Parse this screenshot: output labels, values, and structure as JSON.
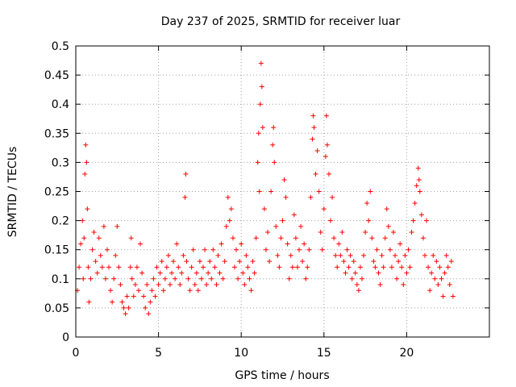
{
  "chart_data": {
    "type": "scatter",
    "title": "Day 237 of 2025, SRMTID for receiver luar",
    "xlabel": "GPS time / hours",
    "ylabel": "SRMTID / TECUs",
    "xlim": [
      0,
      25
    ],
    "ylim": [
      0,
      0.5
    ],
    "x_ticks": [
      0,
      5,
      10,
      15,
      20
    ],
    "x_tick_labels": [
      "0",
      "5",
      "10",
      "15",
      "20"
    ],
    "y_ticks": [
      0,
      0.05,
      0.1,
      0.15,
      0.2,
      0.25,
      0.3,
      0.35,
      0.4,
      0.45,
      0.5
    ],
    "y_tick_labels": [
      "0",
      "0.05",
      "0.1",
      "0.15",
      "0.2",
      "0.25",
      "0.3",
      "0.35",
      "0.4",
      "0.45",
      "0.5"
    ],
    "grid": true,
    "marker": "+",
    "color": "#ff0000",
    "series": [
      {
        "name": "SRMTID",
        "points": [
          [
            0.1,
            0.08
          ],
          [
            0.2,
            0.12
          ],
          [
            0.3,
            0.16
          ],
          [
            0.4,
            0.2
          ],
          [
            0.45,
            0.1
          ],
          [
            0.5,
            0.17
          ],
          [
            0.55,
            0.28
          ],
          [
            0.6,
            0.33
          ],
          [
            0.65,
            0.3
          ],
          [
            0.7,
            0.22
          ],
          [
            0.75,
            0.12
          ],
          [
            0.8,
            0.06
          ],
          [
            0.9,
            0.1
          ],
          [
            1.0,
            0.15
          ],
          [
            1.1,
            0.18
          ],
          [
            1.2,
            0.13
          ],
          [
            1.3,
            0.11
          ],
          [
            1.4,
            0.17
          ],
          [
            1.5,
            0.14
          ],
          [
            1.6,
            0.12
          ],
          [
            1.7,
            0.19
          ],
          [
            1.8,
            0.1
          ],
          [
            1.9,
            0.15
          ],
          [
            2.0,
            0.12
          ],
          [
            2.1,
            0.08
          ],
          [
            2.2,
            0.06
          ],
          [
            2.3,
            0.1
          ],
          [
            2.4,
            0.14
          ],
          [
            2.5,
            0.19
          ],
          [
            2.6,
            0.12
          ],
          [
            2.7,
            0.09
          ],
          [
            2.8,
            0.06
          ],
          [
            2.9,
            0.05
          ],
          [
            3.0,
            0.04
          ],
          [
            3.1,
            0.07
          ],
          [
            3.2,
            0.05
          ],
          [
            3.3,
            0.12
          ],
          [
            3.35,
            0.17
          ],
          [
            3.4,
            0.1
          ],
          [
            3.5,
            0.07
          ],
          [
            3.6,
            0.09
          ],
          [
            3.7,
            0.12
          ],
          [
            3.8,
            0.08
          ],
          [
            3.9,
            0.16
          ],
          [
            4.0,
            0.11
          ],
          [
            4.1,
            0.07
          ],
          [
            4.2,
            0.05
          ],
          [
            4.3,
            0.09
          ],
          [
            4.4,
            0.04
          ],
          [
            4.5,
            0.06
          ],
          [
            4.6,
            0.08
          ],
          [
            4.7,
            0.1
          ],
          [
            4.8,
            0.07
          ],
          [
            4.9,
            0.12
          ],
          [
            5.0,
            0.09
          ],
          [
            5.1,
            0.11
          ],
          [
            5.2,
            0.13
          ],
          [
            5.3,
            0.08
          ],
          [
            5.4,
            0.1
          ],
          [
            5.5,
            0.12
          ],
          [
            5.6,
            0.14
          ],
          [
            5.7,
            0.09
          ],
          [
            5.8,
            0.11
          ],
          [
            5.9,
            0.13
          ],
          [
            6.0,
            0.1
          ],
          [
            6.1,
            0.16
          ],
          [
            6.2,
            0.12
          ],
          [
            6.3,
            0.09
          ],
          [
            6.4,
            0.11
          ],
          [
            6.5,
            0.14
          ],
          [
            6.6,
            0.24
          ],
          [
            6.65,
            0.28
          ],
          [
            6.7,
            0.13
          ],
          [
            6.8,
            0.1
          ],
          [
            6.9,
            0.08
          ],
          [
            7.0,
            0.12
          ],
          [
            7.1,
            0.15
          ],
          [
            7.2,
            0.09
          ],
          [
            7.3,
            0.11
          ],
          [
            7.4,
            0.08
          ],
          [
            7.5,
            0.13
          ],
          [
            7.6,
            0.1
          ],
          [
            7.7,
            0.12
          ],
          [
            7.8,
            0.15
          ],
          [
            7.9,
            0.09
          ],
          [
            8.0,
            0.11
          ],
          [
            8.1,
            0.13
          ],
          [
            8.2,
            0.1
          ],
          [
            8.3,
            0.15
          ],
          [
            8.4,
            0.12
          ],
          [
            8.5,
            0.09
          ],
          [
            8.6,
            0.14
          ],
          [
            8.7,
            0.11
          ],
          [
            8.8,
            0.16
          ],
          [
            8.9,
            0.1
          ],
          [
            9.0,
            0.13
          ],
          [
            9.1,
            0.19
          ],
          [
            9.2,
            0.24
          ],
          [
            9.3,
            0.2
          ],
          [
            9.4,
            0.22
          ],
          [
            9.5,
            0.17
          ],
          [
            9.6,
            0.12
          ],
          [
            9.7,
            0.15
          ],
          [
            9.8,
            0.1
          ],
          [
            9.9,
            0.13
          ],
          [
            10.0,
            0.16
          ],
          [
            10.1,
            0.11
          ],
          [
            10.2,
            0.09
          ],
          [
            10.3,
            0.14
          ],
          [
            10.4,
            0.12
          ],
          [
            10.5,
            0.1
          ],
          [
            10.6,
            0.08
          ],
          [
            10.7,
            0.13
          ],
          [
            10.8,
            0.11
          ],
          [
            10.9,
            0.17
          ],
          [
            11.0,
            0.3
          ],
          [
            11.05,
            0.35
          ],
          [
            11.1,
            0.25
          ],
          [
            11.15,
            0.4
          ],
          [
            11.2,
            0.47
          ],
          [
            11.25,
            0.43
          ],
          [
            11.3,
            0.36
          ],
          [
            11.4,
            0.22
          ],
          [
            11.5,
            0.15
          ],
          [
            11.6,
            0.18
          ],
          [
            11.7,
            0.13
          ],
          [
            11.8,
            0.25
          ],
          [
            11.9,
            0.33
          ],
          [
            11.95,
            0.36
          ],
          [
            12.0,
            0.3
          ],
          [
            12.1,
            0.19
          ],
          [
            12.2,
            0.14
          ],
          [
            12.3,
            0.12
          ],
          [
            12.4,
            0.17
          ],
          [
            12.5,
            0.2
          ],
          [
            12.6,
            0.27
          ],
          [
            12.7,
            0.24
          ],
          [
            12.8,
            0.16
          ],
          [
            12.9,
            0.1
          ],
          [
            13.0,
            0.14
          ],
          [
            13.1,
            0.12
          ],
          [
            13.2,
            0.21
          ],
          [
            13.3,
            0.17
          ],
          [
            13.4,
            0.12
          ],
          [
            13.5,
            0.15
          ],
          [
            13.6,
            0.19
          ],
          [
            13.7,
            0.13
          ],
          [
            13.8,
            0.16
          ],
          [
            13.9,
            0.1
          ],
          [
            14.0,
            0.12
          ],
          [
            14.1,
            0.15
          ],
          [
            14.2,
            0.24
          ],
          [
            14.3,
            0.34
          ],
          [
            14.35,
            0.38
          ],
          [
            14.4,
            0.36
          ],
          [
            14.5,
            0.28
          ],
          [
            14.6,
            0.32
          ],
          [
            14.7,
            0.25
          ],
          [
            14.8,
            0.18
          ],
          [
            14.9,
            0.15
          ],
          [
            15.0,
            0.22
          ],
          [
            15.1,
            0.31
          ],
          [
            15.15,
            0.38
          ],
          [
            15.2,
            0.33
          ],
          [
            15.3,
            0.28
          ],
          [
            15.4,
            0.2
          ],
          [
            15.5,
            0.24
          ],
          [
            15.6,
            0.17
          ],
          [
            15.7,
            0.14
          ],
          [
            15.8,
            0.12
          ],
          [
            15.9,
            0.16
          ],
          [
            16.0,
            0.14
          ],
          [
            16.1,
            0.18
          ],
          [
            16.2,
            0.13
          ],
          [
            16.3,
            0.11
          ],
          [
            16.4,
            0.15
          ],
          [
            16.5,
            0.12
          ],
          [
            16.6,
            0.14
          ],
          [
            16.7,
            0.1
          ],
          [
            16.8,
            0.13
          ],
          [
            16.9,
            0.11
          ],
          [
            17.0,
            0.09
          ],
          [
            17.1,
            0.08
          ],
          [
            17.2,
            0.12
          ],
          [
            17.3,
            0.1
          ],
          [
            17.4,
            0.14
          ],
          [
            17.5,
            0.18
          ],
          [
            17.6,
            0.23
          ],
          [
            17.7,
            0.2
          ],
          [
            17.8,
            0.25
          ],
          [
            17.9,
            0.17
          ],
          [
            18.0,
            0.13
          ],
          [
            18.1,
            0.12
          ],
          [
            18.2,
            0.15
          ],
          [
            18.3,
            0.11
          ],
          [
            18.4,
            0.09
          ],
          [
            18.5,
            0.14
          ],
          [
            18.6,
            0.12
          ],
          [
            18.7,
            0.17
          ],
          [
            18.8,
            0.22
          ],
          [
            18.9,
            0.19
          ],
          [
            19.0,
            0.15
          ],
          [
            19.1,
            0.12
          ],
          [
            19.2,
            0.18
          ],
          [
            19.3,
            0.14
          ],
          [
            19.4,
            0.1
          ],
          [
            19.5,
            0.13
          ],
          [
            19.6,
            0.16
          ],
          [
            19.7,
            0.12
          ],
          [
            19.8,
            0.09
          ],
          [
            19.9,
            0.14
          ],
          [
            20.0,
            0.11
          ],
          [
            20.1,
            0.15
          ],
          [
            20.2,
            0.12
          ],
          [
            20.3,
            0.18
          ],
          [
            20.4,
            0.2
          ],
          [
            20.5,
            0.23
          ],
          [
            20.6,
            0.26
          ],
          [
            20.7,
            0.29
          ],
          [
            20.75,
            0.27
          ],
          [
            20.8,
            0.25
          ],
          [
            20.9,
            0.21
          ],
          [
            21.0,
            0.17
          ],
          [
            21.1,
            0.14
          ],
          [
            21.2,
            0.2
          ],
          [
            21.3,
            0.12
          ],
          [
            21.4,
            0.08
          ],
          [
            21.5,
            0.11
          ],
          [
            21.6,
            0.14
          ],
          [
            21.7,
            0.1
          ],
          [
            21.8,
            0.13
          ],
          [
            21.9,
            0.09
          ],
          [
            22.0,
            0.12
          ],
          [
            22.1,
            0.1
          ],
          [
            22.2,
            0.07
          ],
          [
            22.3,
            0.11
          ],
          [
            22.4,
            0.14
          ],
          [
            22.5,
            0.12
          ],
          [
            22.6,
            0.09
          ],
          [
            22.7,
            0.13
          ],
          [
            22.8,
            0.07
          ]
        ]
      }
    ]
  }
}
